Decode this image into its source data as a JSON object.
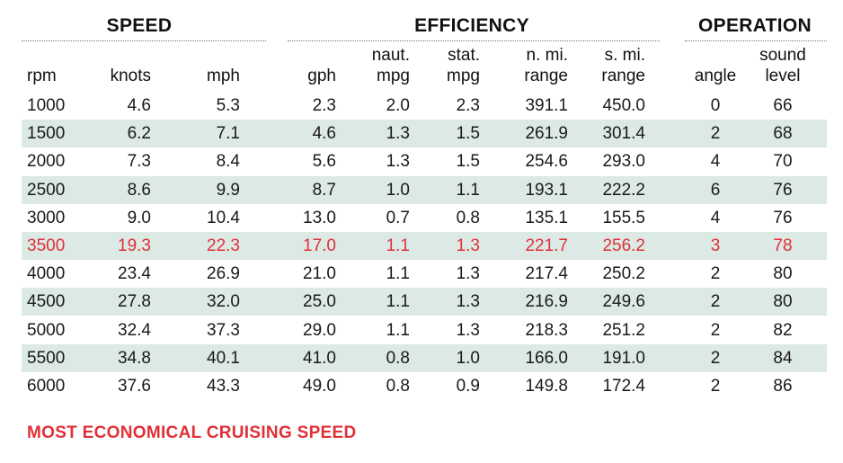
{
  "chart_data": {
    "type": "table",
    "groups": [
      {
        "key": "speed",
        "title": "SPEED"
      },
      {
        "key": "efficiency",
        "title": "EFFICIENCY"
      },
      {
        "key": "operation",
        "title": "OPERATION"
      }
    ],
    "columns": [
      {
        "key": "rpm",
        "lines": [
          "",
          "rpm"
        ]
      },
      {
        "key": "knots",
        "lines": [
          "",
          "knots"
        ]
      },
      {
        "key": "mph",
        "lines": [
          "",
          "mph"
        ]
      },
      {
        "key": "gph",
        "lines": [
          "",
          "gph"
        ]
      },
      {
        "key": "naut_mpg",
        "lines": [
          "naut.",
          "mpg"
        ]
      },
      {
        "key": "stat_mpg",
        "lines": [
          "stat.",
          "mpg"
        ]
      },
      {
        "key": "n_mi_range",
        "lines": [
          "n. mi.",
          "range"
        ]
      },
      {
        "key": "s_mi_range",
        "lines": [
          "s. mi.",
          "range"
        ]
      },
      {
        "key": "angle",
        "lines": [
          "",
          "angle"
        ]
      },
      {
        "key": "sound_level",
        "lines": [
          "sound",
          "level"
        ]
      }
    ],
    "rows": [
      [
        "1000",
        "4.6",
        "5.3",
        "2.3",
        "2.0",
        "2.3",
        "391.1",
        "450.0",
        "0",
        "66"
      ],
      [
        "1500",
        "6.2",
        "7.1",
        "4.6",
        "1.3",
        "1.5",
        "261.9",
        "301.4",
        "2",
        "68"
      ],
      [
        "2000",
        "7.3",
        "8.4",
        "5.6",
        "1.3",
        "1.5",
        "254.6",
        "293.0",
        "4",
        "70"
      ],
      [
        "2500",
        "8.6",
        "9.9",
        "8.7",
        "1.0",
        "1.1",
        "193.1",
        "222.2",
        "6",
        "76"
      ],
      [
        "3000",
        "9.0",
        "10.4",
        "13.0",
        "0.7",
        "0.8",
        "135.1",
        "155.5",
        "4",
        "76"
      ],
      [
        "3500",
        "19.3",
        "22.3",
        "17.0",
        "1.1",
        "1.3",
        "221.7",
        "256.2",
        "3",
        "78"
      ],
      [
        "4000",
        "23.4",
        "26.9",
        "21.0",
        "1.1",
        "1.3",
        "217.4",
        "250.2",
        "2",
        "80"
      ],
      [
        "4500",
        "27.8",
        "32.0",
        "25.0",
        "1.1",
        "1.3",
        "216.9",
        "249.6",
        "2",
        "80"
      ],
      [
        "5000",
        "32.4",
        "37.3",
        "29.0",
        "1.1",
        "1.3",
        "218.3",
        "251.2",
        "2",
        "82"
      ],
      [
        "5500",
        "34.8",
        "40.1",
        "41.0",
        "0.8",
        "1.0",
        "166.0",
        "191.0",
        "2",
        "84"
      ],
      [
        "6000",
        "37.6",
        "43.3",
        "49.0",
        "0.8",
        "0.9",
        "149.8",
        "172.4",
        "2",
        "86"
      ]
    ],
    "highlight_row": 5,
    "highlight_color": "#e03038",
    "stripe_color": "#dce9e4",
    "footnote": "MOST ECONOMICAL CRUISING SPEED"
  }
}
